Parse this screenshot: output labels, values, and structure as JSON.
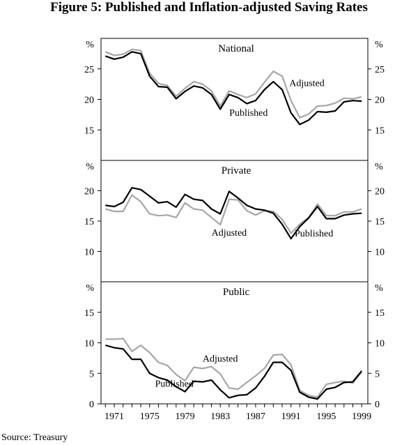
{
  "figure_title": "Figure 5: Published and Inflation-adjusted Saving Rates",
  "source": "Source: Treasury",
  "colors": {
    "published": "#000000",
    "adjusted": "#a6a6a6",
    "frame": "#000000"
  },
  "chart_data": [
    {
      "type": "line",
      "title": "National",
      "ylabel": "%",
      "ylim": [
        10,
        30
      ],
      "yticks": [
        15,
        20,
        25
      ],
      "x": [
        1970,
        1971,
        1972,
        1973,
        1974,
        1975,
        1976,
        1977,
        1978,
        1979,
        1980,
        1981,
        1982,
        1983,
        1984,
        1985,
        1986,
        1987,
        1988,
        1989,
        1990,
        1991,
        1992,
        1993,
        1994,
        1995,
        1996,
        1997,
        1998,
        1999
      ],
      "series": [
        {
          "name": "Published",
          "values": [
            27.1,
            26.6,
            26.9,
            27.8,
            27.5,
            23.8,
            22.1,
            22.0,
            20.1,
            21.3,
            22.2,
            21.9,
            20.8,
            18.4,
            20.8,
            20.3,
            19.3,
            19.8,
            21.6,
            22.9,
            21.6,
            17.8,
            15.9,
            16.6,
            18.0,
            17.9,
            18.1,
            19.6,
            19.8,
            19.7
          ]
        },
        {
          "name": "Adjusted",
          "values": [
            27.8,
            27.2,
            27.4,
            28.2,
            28.0,
            24.3,
            22.6,
            22.3,
            20.5,
            21.8,
            22.9,
            22.5,
            21.4,
            18.9,
            21.4,
            20.8,
            20.3,
            20.9,
            22.8,
            24.6,
            23.8,
            19.8,
            17.0,
            17.6,
            18.9,
            19.0,
            19.4,
            20.2,
            20.1,
            20.4
          ]
        }
      ],
      "labels": [
        {
          "series": "Adjusted",
          "text": "Adjusted"
        },
        {
          "series": "Published",
          "text": "Published"
        }
      ]
    },
    {
      "type": "line",
      "title": "Private",
      "ylabel": "%",
      "ylim": [
        5,
        25
      ],
      "yticks": [
        10,
        15,
        20
      ],
      "x": [
        1970,
        1971,
        1972,
        1973,
        1974,
        1975,
        1976,
        1977,
        1978,
        1979,
        1980,
        1981,
        1982,
        1983,
        1984,
        1985,
        1986,
        1987,
        1988,
        1989,
        1990,
        1991,
        1992,
        1993,
        1994,
        1995,
        1996,
        1997,
        1998,
        1999
      ],
      "series": [
        {
          "name": "Published",
          "values": [
            17.6,
            17.4,
            18.1,
            20.5,
            20.2,
            19.1,
            18.0,
            18.2,
            17.3,
            19.4,
            18.6,
            18.4,
            17.0,
            16.2,
            19.9,
            18.8,
            17.6,
            17.0,
            16.8,
            16.3,
            14.5,
            12.1,
            14.1,
            15.5,
            17.4,
            15.4,
            15.4,
            16.0,
            16.2,
            16.3
          ]
        },
        {
          "name": "Adjusted",
          "values": [
            17.0,
            16.6,
            16.6,
            19.3,
            18.2,
            16.2,
            15.9,
            16.0,
            15.6,
            18.0,
            17.0,
            16.8,
            15.6,
            14.4,
            18.6,
            18.5,
            16.7,
            16.0,
            16.7,
            16.6,
            15.3,
            13.0,
            14.5,
            15.6,
            17.8,
            15.9,
            15.9,
            16.5,
            16.5,
            17.0
          ]
        }
      ],
      "labels": [
        {
          "series": "Adjusted",
          "text": "Adjusted"
        },
        {
          "series": "Published",
          "text": "Published"
        }
      ]
    },
    {
      "type": "line",
      "title": "Public",
      "ylabel": "%",
      "ylim": [
        0,
        20
      ],
      "yticks": [
        0,
        5,
        10,
        15
      ],
      "xticks": [
        1971,
        1975,
        1979,
        1983,
        1987,
        1991,
        1995,
        1999
      ],
      "x": [
        1970,
        1971,
        1972,
        1973,
        1974,
        1975,
        1976,
        1977,
        1978,
        1979,
        1980,
        1981,
        1982,
        1983,
        1984,
        1985,
        1986,
        1987,
        1988,
        1989,
        1990,
        1991,
        1992,
        1993,
        1994,
        1995,
        1996,
        1997,
        1998,
        1999
      ],
      "series": [
        {
          "name": "Published",
          "values": [
            9.6,
            9.2,
            9.0,
            7.3,
            7.3,
            5.0,
            4.3,
            3.9,
            2.8,
            2.0,
            3.7,
            3.6,
            3.9,
            2.3,
            1.0,
            1.4,
            1.5,
            2.6,
            4.5,
            6.8,
            6.8,
            5.5,
            1.9,
            1.1,
            0.8,
            2.4,
            2.7,
            3.5,
            3.6,
            5.4
          ]
        },
        {
          "name": "Adjusted",
          "values": [
            10.6,
            10.6,
            10.7,
            8.6,
            9.6,
            8.4,
            6.8,
            6.3,
            4.8,
            3.8,
            6.0,
            5.8,
            6.1,
            4.9,
            2.6,
            2.4,
            3.5,
            4.6,
            5.8,
            8.0,
            8.1,
            6.4,
            2.2,
            1.4,
            1.1,
            3.2,
            3.5,
            3.7,
            3.4,
            5.2
          ]
        }
      ],
      "labels": [
        {
          "series": "Adjusted",
          "text": "Adjusted"
        },
        {
          "series": "Published",
          "text": "Published"
        }
      ]
    }
  ]
}
